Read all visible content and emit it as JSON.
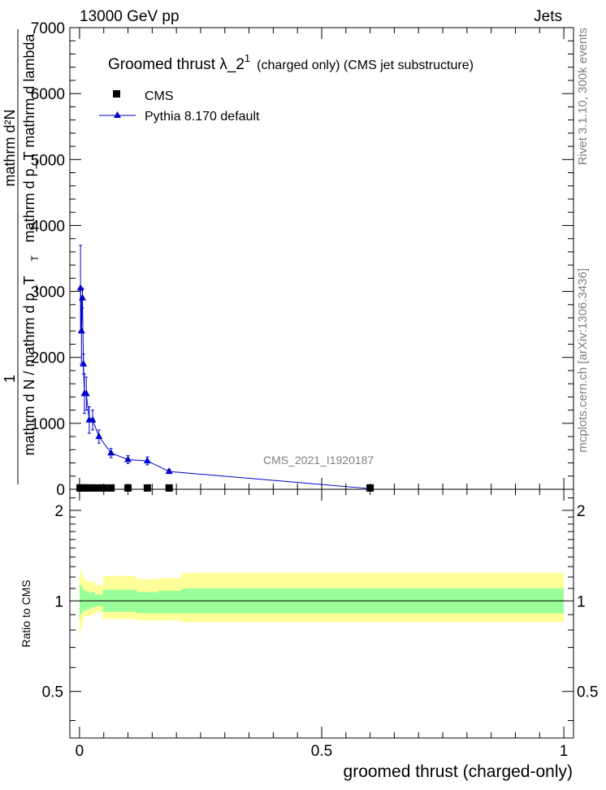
{
  "header": {
    "left": "13000 GeV pp",
    "right": "Jets",
    "side_top": "Rivet 3.1.10,  300k events",
    "side_bottom": "mcplots.cern.ch [arXiv:1306.3436]"
  },
  "chart_data": [
    {
      "type": "line",
      "title_main": "Groomed thrust  λ_2",
      "title_sup": "1",
      "title_rest": "(charged only) (CMS jet substructure)",
      "analysis_label": "CMS_2021_I1920187",
      "ylabel_numer": "mathrm d²N",
      "ylabel_denom": "mathrm d p_T mathrm d lambda",
      "ylabel_one": "1",
      "ylabel_bottom": "mathrm d N / mathrm d p_T",
      "ylabel_sub": "T",
      "ylim": [
        0,
        7000
      ],
      "xlim": [
        -0.02,
        1.02
      ],
      "yticks": [
        0,
        1000,
        2000,
        3000,
        4000,
        5000,
        6000,
        7000
      ],
      "ytick_labels": [
        "0",
        "1000",
        "2000",
        "3000",
        "4000",
        "5000",
        "6000",
        "7000"
      ],
      "legend": {
        "position": "top-left",
        "entries": [
          {
            "name": "CMS",
            "marker": "square",
            "color": "#000000"
          },
          {
            "name": "Pythia 8.170 default",
            "marker": "triangle",
            "color": "#0000cc"
          }
        ]
      },
      "series": [
        {
          "name": "CMS",
          "x": [
            0.001,
            0.005,
            0.009,
            0.013,
            0.019,
            0.027,
            0.037,
            0.05,
            0.065,
            0.1,
            0.14,
            0.185,
            0.6
          ],
          "values": [
            20,
            20,
            20,
            20,
            20,
            20,
            20,
            20,
            20,
            20,
            20,
            20,
            20
          ]
        },
        {
          "name": "Pythia 8.170 default",
          "x": [
            0.002,
            0.004,
            0.006,
            0.008,
            0.01,
            0.014,
            0.02,
            0.027,
            0.04,
            0.065,
            0.1,
            0.14,
            0.185,
            0.6
          ],
          "values": [
            3050,
            2400,
            2900,
            1900,
            1450,
            1450,
            1050,
            1050,
            800,
            550,
            450,
            430,
            270,
            10
          ],
          "errors": [
            650,
            500,
            150,
            150,
            300,
            250,
            200,
            150,
            100,
            70,
            60,
            60,
            30,
            5
          ]
        }
      ],
      "grid": false
    },
    {
      "type": "area",
      "ylabel": "Ratio to CMS",
      "xlabel": "groomed thrust (charged-only)",
      "ylim": [
        0.35,
        2.35
      ],
      "log_y": true,
      "xlim": [
        -0.02,
        1.02
      ],
      "yticks": [
        0.5,
        1,
        2
      ],
      "ytick_labels": [
        "0.5",
        "1",
        "2"
      ],
      "xticks": [
        0,
        0.5,
        1
      ],
      "xtick_labels": [
        "0",
        "0.5",
        "1"
      ],
      "reference_line": 1,
      "bands": {
        "colors": {
          "outer": "#ffff99",
          "inner": "#99ff99"
        },
        "edges": [
          0,
          0.002,
          0.004,
          0.006,
          0.008,
          0.01,
          0.012,
          0.016,
          0.024,
          0.032,
          0.048,
          0.064,
          0.082,
          0.118,
          0.162,
          0.21,
          1.0
        ],
        "outer_lo": [
          0.76,
          0.8,
          0.83,
          0.85,
          0.87,
          0.88,
          0.89,
          0.89,
          0.9,
          0.92,
          0.87,
          0.87,
          0.87,
          0.86,
          0.86,
          0.85
        ],
        "outer_hi": [
          1.25,
          1.28,
          1.24,
          1.21,
          1.19,
          1.18,
          1.17,
          1.16,
          1.16,
          1.13,
          1.21,
          1.21,
          1.21,
          1.18,
          1.19,
          1.24
        ],
        "inner_lo": [
          0.87,
          0.9,
          0.91,
          0.92,
          0.93,
          0.93,
          0.93,
          0.94,
          0.95,
          0.96,
          0.92,
          0.92,
          0.92,
          0.91,
          0.91,
          0.91
        ],
        "inner_hi": [
          1.13,
          1.13,
          1.11,
          1.1,
          1.09,
          1.08,
          1.08,
          1.07,
          1.07,
          1.05,
          1.09,
          1.09,
          1.09,
          1.07,
          1.08,
          1.1
        ]
      }
    }
  ]
}
